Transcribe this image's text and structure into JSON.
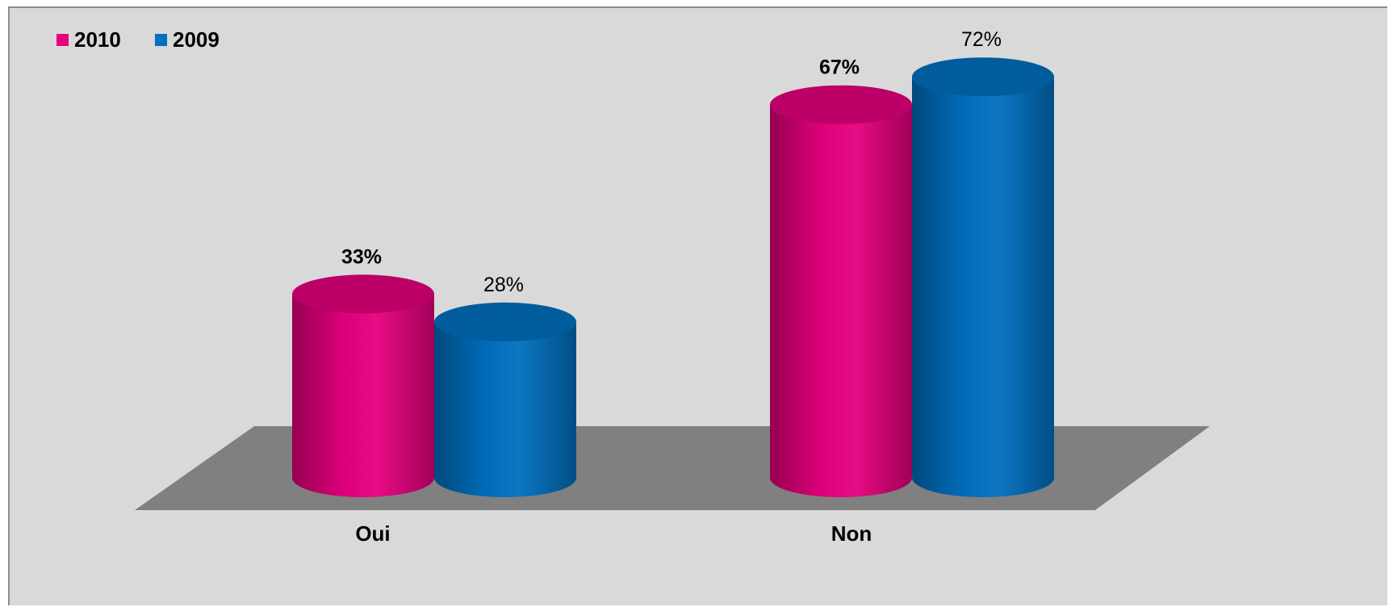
{
  "chart_data": {
    "type": "bar",
    "style": "3d-cylinder",
    "categories": [
      "Oui",
      "Non"
    ],
    "series": [
      {
        "name": "2010",
        "color": "#e6007e",
        "values": [
          33,
          67
        ],
        "labels": [
          "33%",
          "67%"
        ],
        "label_bold": true
      },
      {
        "name": "2009",
        "color": "#0070c0",
        "values": [
          28,
          72
        ],
        "labels": [
          "28%",
          "72%"
        ],
        "label_bold": false
      }
    ],
    "ylim": [
      0,
      80
    ],
    "legend": "top-left",
    "floor_color": "#808080",
    "background": "#d9d9d9"
  }
}
